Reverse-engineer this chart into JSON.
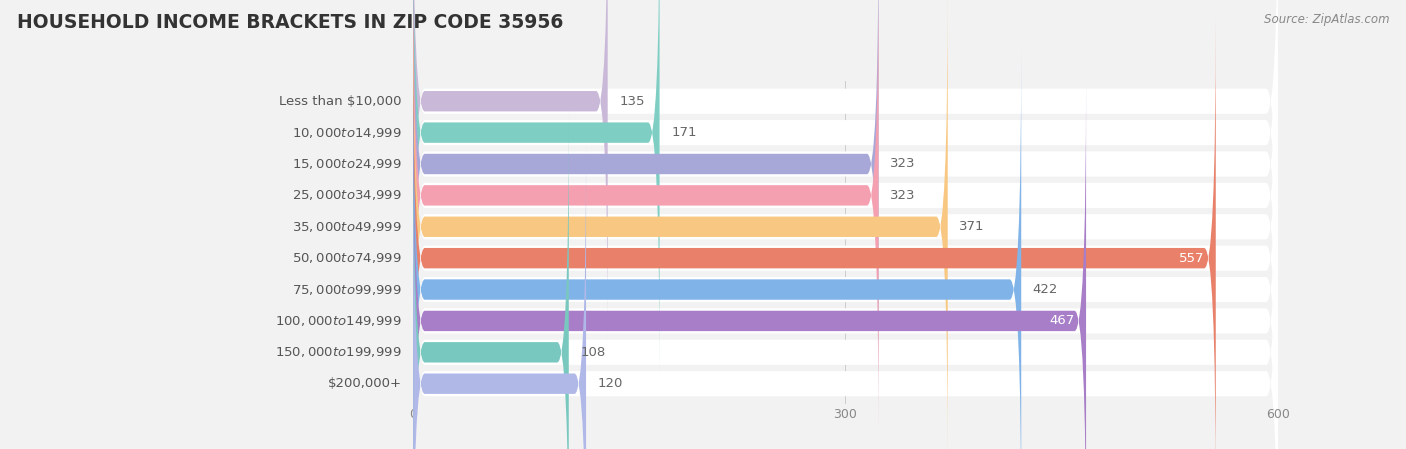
{
  "title": "HOUSEHOLD INCOME BRACKETS IN ZIP CODE 35956",
  "source": "Source: ZipAtlas.com",
  "categories": [
    "Less than $10,000",
    "$10,000 to $14,999",
    "$15,000 to $24,999",
    "$25,000 to $34,999",
    "$35,000 to $49,999",
    "$50,000 to $74,999",
    "$75,000 to $99,999",
    "$100,000 to $149,999",
    "$150,000 to $199,999",
    "$200,000+"
  ],
  "values": [
    135,
    171,
    323,
    323,
    371,
    557,
    422,
    467,
    108,
    120
  ],
  "bar_colors": [
    "#c9b8d8",
    "#7ecec4",
    "#a8a8d8",
    "#f4a0b0",
    "#f8c882",
    "#e8806a",
    "#80b4e8",
    "#a87ec8",
    "#78c8c0",
    "#b0b8e8"
  ],
  "background_color": "#f2f2f2",
  "bar_bg_color": "#ffffff",
  "data_min": 0,
  "data_max": 600,
  "xticks": [
    0,
    300,
    600
  ],
  "title_fontsize": 13.5,
  "label_fontsize": 9.5,
  "value_fontsize": 9.5
}
